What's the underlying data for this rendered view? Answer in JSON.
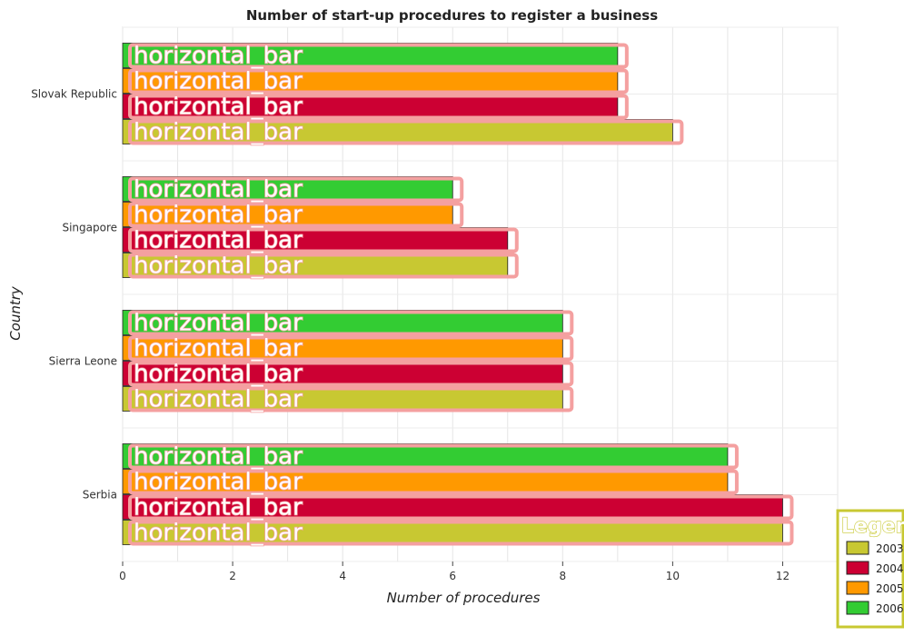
{
  "chart_data": {
    "type": "bar",
    "orientation": "horizontal",
    "title": "Number of start-up procedures to register a business",
    "xlabel": "Number of procedures",
    "ylabel": "Country",
    "xlim": [
      0,
      13
    ],
    "x_ticks": [
      0,
      2,
      4,
      6,
      8,
      10,
      12
    ],
    "categories": [
      "Serbia",
      "Sierra Leone",
      "Singapore",
      "Slovak Republic"
    ],
    "series": [
      {
        "name": "2003",
        "color": "#c8c832",
        "values": [
          12,
          8,
          7,
          10
        ]
      },
      {
        "name": "2004",
        "color": "#cc0033",
        "values": [
          12,
          8,
          7,
          9
        ]
      },
      {
        "name": "2005",
        "color": "#ff9900",
        "values": [
          11,
          8,
          6,
          9
        ]
      },
      {
        "name": "2006",
        "color": "#33cc33",
        "values": [
          11,
          8,
          6,
          9
        ]
      }
    ],
    "bar_annotation": "horizontal_bar",
    "legend": {
      "title": "Legend",
      "placement": "bottom-right"
    },
    "grid": true
  }
}
